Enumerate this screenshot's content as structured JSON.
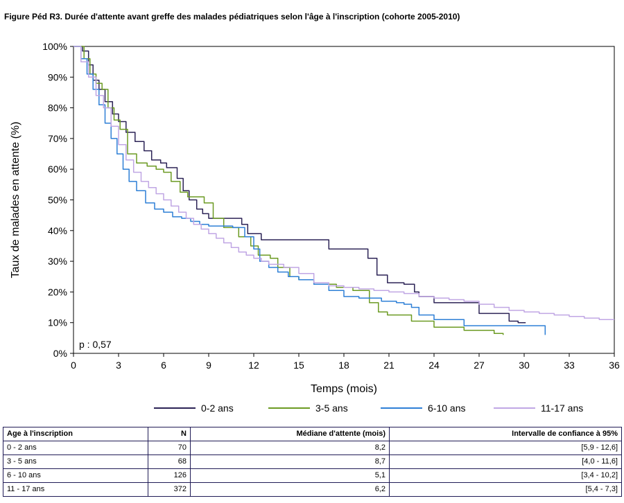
{
  "figure_title": "Figure Péd R3. Durée d'attente avant greffe des malades pédiatriques selon l'âge à l'inscription (cohorte 2005-2010)",
  "chart_data": {
    "type": "line",
    "title": "Figure Péd R3. Durée d'attente avant greffe des malades pédiatriques selon l'âge à l'inscription (cohorte 2005-2010)",
    "xlabel": "Temps (mois)",
    "ylabel": "Taux de malades en attente (%)",
    "xlim": [
      0,
      36
    ],
    "ylim": [
      0,
      100
    ],
    "x_ticks": [
      0,
      3,
      6,
      9,
      12,
      15,
      18,
      21,
      24,
      27,
      30,
      33,
      36
    ],
    "y_ticks": [
      0,
      10,
      20,
      30,
      40,
      50,
      60,
      70,
      80,
      90,
      100
    ],
    "x_tick_labels": [
      "0",
      "3",
      "6",
      "9",
      "12",
      "15",
      "18",
      "21",
      "24",
      "27",
      "30",
      "33",
      "36"
    ],
    "y_tick_labels": [
      "0%",
      "10%",
      "20%",
      "30%",
      "40%",
      "50%",
      "60%",
      "70%",
      "80%",
      "90%",
      "100%"
    ],
    "annotation": "p : 0,57",
    "legend_position": "bottom",
    "grid": false,
    "step": true,
    "series": [
      {
        "name": "0-2 ans",
        "color": "#2b2255",
        "x": [
          0,
          0.6,
          1.0,
          1.3,
          1.7,
          2.1,
          2.6,
          3.0,
          3.5,
          4.1,
          4.7,
          5.2,
          5.8,
          6.2,
          6.9,
          7.3,
          7.7,
          8.2,
          8.6,
          9.0,
          10.4,
          11.2,
          11.6,
          12.0,
          12.5,
          13.5,
          15.0,
          17.0,
          18.0,
          19.0,
          19.6,
          20.2,
          20.9,
          22.0,
          22.7,
          23.0,
          24.0,
          27.0,
          29.0,
          29.6,
          30.1
        ],
        "y": [
          100,
          98.5,
          94,
          89,
          86,
          82,
          78,
          75.5,
          72,
          69,
          66,
          63,
          62,
          60.5,
          57,
          53,
          50,
          47,
          45.5,
          44,
          44,
          42,
          39,
          39,
          37,
          37,
          37,
          34,
          34,
          34,
          31,
          25.5,
          23,
          22.5,
          20,
          18.5,
          16.5,
          13,
          10.5,
          10,
          10
        ]
      },
      {
        "name": "3-5 ans",
        "color": "#6b9a22",
        "x": [
          0,
          0.7,
          1.1,
          1.5,
          1.9,
          2.3,
          2.7,
          3.1,
          3.6,
          4.2,
          4.9,
          5.5,
          6.0,
          6.5,
          7.1,
          7.6,
          8.2,
          8.7,
          9.3,
          10.0,
          11.0,
          11.8,
          12.3,
          13.1,
          13.6,
          14.4,
          15.0,
          16.0,
          17.5,
          18.6,
          19.7,
          20.3,
          20.9,
          22.5,
          24.0,
          26.0,
          28.0,
          28.6
        ],
        "y": [
          100,
          96,
          91,
          88,
          86,
          80,
          76,
          73,
          65,
          62,
          61,
          60,
          59,
          56,
          52.5,
          51,
          51,
          49,
          44,
          41,
          38,
          35,
          32,
          31,
          28,
          25,
          24,
          22.5,
          21.5,
          20.5,
          16.5,
          13.5,
          12.5,
          10.5,
          8.5,
          7.5,
          6.5,
          6
        ]
      },
      {
        "name": "6-10 ans",
        "color": "#2d7fd6",
        "x": [
          0,
          0.5,
          0.9,
          1.3,
          1.7,
          2.1,
          2.5,
          2.9,
          3.3,
          3.7,
          4.2,
          4.8,
          5.4,
          6.0,
          6.6,
          7.2,
          7.8,
          8.4,
          9.0,
          9.8,
          10.6,
          11.4,
          12.0,
          12.4,
          13.0,
          13.6,
          14.3,
          15.0,
          16.0,
          17.0,
          18.0,
          19.0,
          20.5,
          21.5,
          22.0,
          22.5,
          23.0,
          24.0,
          26.0,
          28.0,
          30.0,
          31.2,
          31.4
        ],
        "y": [
          100,
          96,
          91,
          86,
          81,
          75,
          70,
          65,
          60,
          56,
          53,
          49,
          47,
          46,
          44.5,
          44,
          43,
          42,
          41.5,
          41.5,
          41,
          38,
          34,
          30,
          28,
          26.5,
          25,
          24,
          22.5,
          20.5,
          18.5,
          18,
          17,
          16.5,
          16,
          15,
          12.5,
          11,
          9,
          9,
          9,
          9,
          6
        ]
      },
      {
        "name": "11-17 ans",
        "color": "#c0a6e4",
        "x": [
          0,
          0.5,
          1.0,
          1.5,
          2.0,
          2.5,
          3.0,
          3.5,
          4.0,
          4.5,
          5.0,
          5.5,
          6.0,
          6.5,
          7.0,
          7.5,
          8.0,
          8.5,
          9.0,
          9.5,
          10.0,
          10.5,
          11.0,
          11.5,
          12.0,
          12.5,
          13.0,
          14.0,
          15.0,
          16.0,
          17.0,
          18.0,
          19.0,
          20.0,
          21.0,
          22.0,
          23.0,
          24.0,
          25.0,
          26.0,
          27.0,
          28.0,
          29.0,
          30.0,
          31.0,
          32.0,
          33.0,
          34.0,
          35.0,
          36.0
        ],
        "y": [
          100,
          95,
          90,
          84,
          80,
          74,
          68,
          63,
          59,
          56,
          54,
          52,
          50,
          48,
          46,
          44,
          42,
          40.5,
          39,
          37.5,
          36,
          34.5,
          33,
          32,
          31,
          30,
          29,
          28,
          26,
          23,
          22,
          21.5,
          21,
          20.5,
          20,
          19.5,
          18.5,
          18,
          17.5,
          17,
          16,
          15,
          14,
          13.5,
          13,
          12.5,
          12,
          11.5,
          11,
          11
        ]
      }
    ]
  },
  "table": {
    "headers": [
      "Age à l'inscription",
      "N",
      "Médiane d'attente (mois)",
      "Intervalle de confiance à 95%"
    ],
    "rows": [
      [
        "0 - 2 ans",
        "70",
        "8,2",
        "[5,9 - 12,6]"
      ],
      [
        "3 - 5 ans",
        "68",
        "8,7",
        "[4,0 - 11,6]"
      ],
      [
        "6 - 10 ans",
        "126",
        "5,1",
        "[3,4 - 10,2]"
      ],
      [
        "11 - 17 ans",
        "372",
        "6,2",
        "[5,4 - 7,3]"
      ]
    ]
  }
}
